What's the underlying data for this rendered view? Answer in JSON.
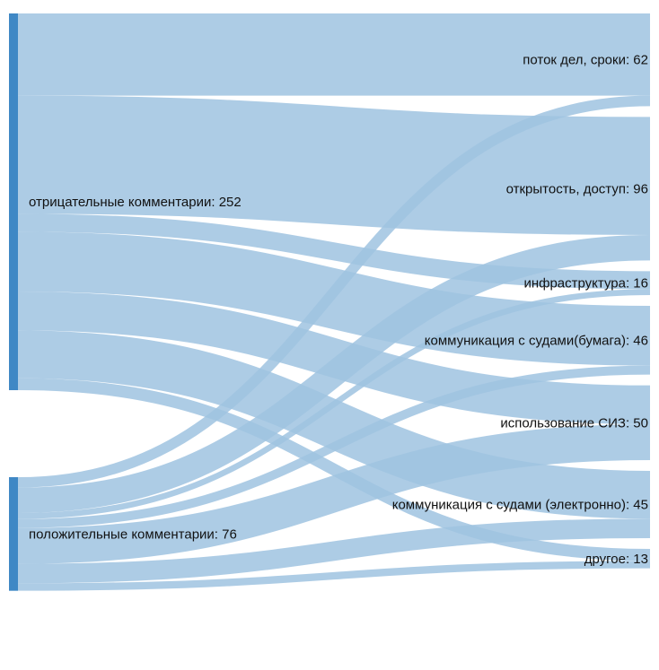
{
  "chart_data": {
    "type": "sankey",
    "colors": {
      "node": "#3f88c5",
      "link": "#9fc3e1",
      "background": "#ffffff"
    },
    "source_nodes": [
      {
        "id": "neg",
        "label": "отрицательные комментарии: 252",
        "value": 252
      },
      {
        "id": "pos",
        "label": "положительные комментарии: 76",
        "value": 76
      }
    ],
    "target_nodes": [
      {
        "id": "flow",
        "label": "поток дел, сроки: 62",
        "value": 62
      },
      {
        "id": "open",
        "label": "открытость, доступ: 96",
        "value": 96
      },
      {
        "id": "infra",
        "label": "инфраструктура: 16",
        "value": 16
      },
      {
        "id": "paper",
        "label": "коммуникация с судами(бумага): 46",
        "value": 46
      },
      {
        "id": "siz",
        "label": "использование СИЗ: 50",
        "value": 50
      },
      {
        "id": "elec",
        "label": "коммуникация с судами (электронно): 45",
        "value": 45
      },
      {
        "id": "other",
        "label": "другое: 13",
        "value": 13
      }
    ],
    "links": [
      {
        "source": "neg",
        "target": "flow",
        "value": 55
      },
      {
        "source": "neg",
        "target": "open",
        "value": 79
      },
      {
        "source": "neg",
        "target": "infra",
        "value": 12
      },
      {
        "source": "neg",
        "target": "paper",
        "value": 40
      },
      {
        "source": "neg",
        "target": "siz",
        "value": 26
      },
      {
        "source": "neg",
        "target": "elec",
        "value": 32
      },
      {
        "source": "neg",
        "target": "other",
        "value": 8
      },
      {
        "source": "pos",
        "target": "flow",
        "value": 7
      },
      {
        "source": "pos",
        "target": "open",
        "value": 17
      },
      {
        "source": "pos",
        "target": "infra",
        "value": 4
      },
      {
        "source": "pos",
        "target": "paper",
        "value": 6
      },
      {
        "source": "pos",
        "target": "siz",
        "value": 24
      },
      {
        "source": "pos",
        "target": "elec",
        "value": 13
      },
      {
        "source": "pos",
        "target": "other",
        "value": 5
      }
    ]
  }
}
